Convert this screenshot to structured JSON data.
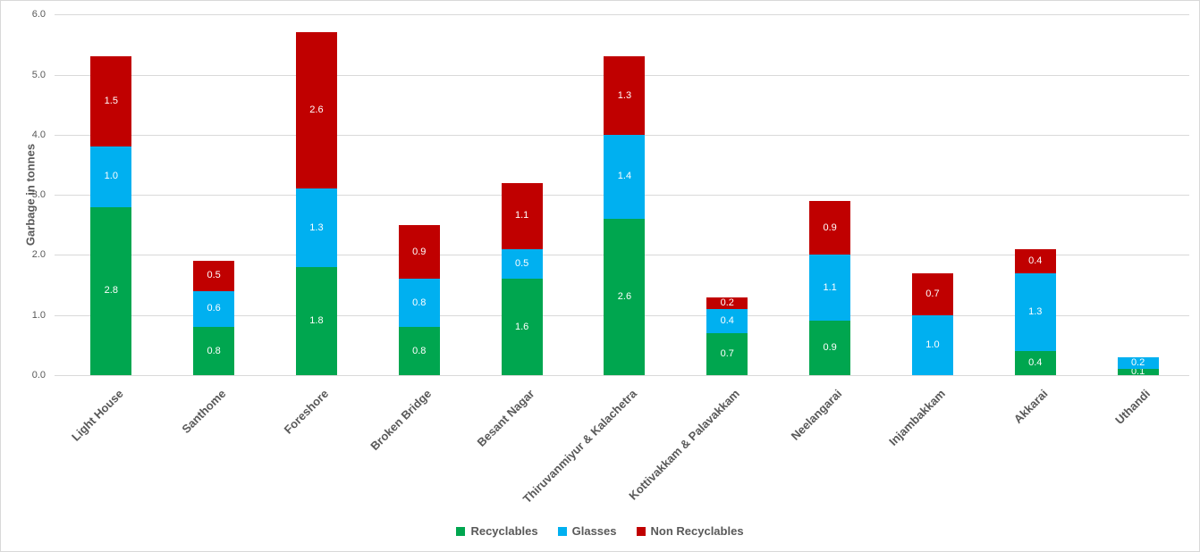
{
  "chart_data": {
    "type": "bar",
    "stacked": true,
    "title": "",
    "xlabel": "",
    "ylabel": "Garbage in tonnes",
    "categories": [
      "Light House",
      "Santhome",
      "Foreshore",
      "Broken Bridge",
      "Besant Nagar",
      "Thiruvanmiyur & Kalachetra",
      "Kottivakkam & Palavakkam",
      "Neelangarai",
      "Injambakkam",
      "Akkarai",
      "Uthandi"
    ],
    "series": [
      {
        "name": "Recyclables",
        "color": "#00A64F",
        "values": [
          2.8,
          0.8,
          1.8,
          0.8,
          1.6,
          2.6,
          0.7,
          0.9,
          0,
          0.4,
          0.1
        ]
      },
      {
        "name": "Glasses",
        "color": "#00B0F0",
        "values": [
          1.0,
          0.6,
          1.3,
          0.8,
          0.5,
          1.4,
          0.4,
          1.1,
          1.0,
          1.3,
          0.2
        ]
      },
      {
        "name": "Non Recyclables",
        "color": "#C00000",
        "values": [
          1.5,
          0.5,
          2.6,
          0.9,
          1.1,
          1.3,
          0.2,
          0.9,
          0.7,
          0.4,
          0
        ]
      }
    ],
    "ylim": [
      0,
      6
    ],
    "ytick_labels": [
      "0.0",
      "1.0",
      "2.0",
      "3.0",
      "4.0",
      "5.0",
      "6.0"
    ],
    "grid": true,
    "data_labels": true,
    "legend_position": "bottom",
    "colors": {
      "grid": "#D9D9D9",
      "axis_text": "#595959",
      "data_label_text": "#FFFFFF",
      "border": "#D9D9D9",
      "background": "#FFFFFF"
    }
  }
}
